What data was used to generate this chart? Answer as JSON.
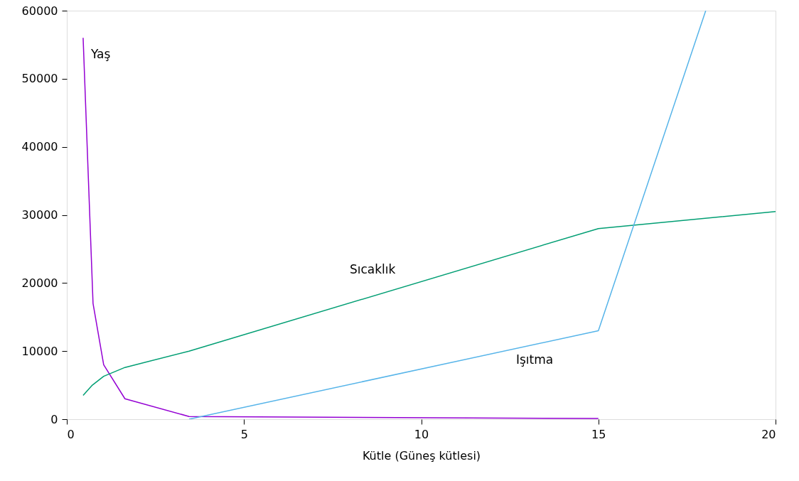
{
  "chart_data": {
    "type": "line",
    "xlabel": "Kütle (Güneş kütlesi)",
    "xlim": [
      0,
      20
    ],
    "xticks": [
      0,
      5,
      10,
      15,
      20
    ],
    "ylim": [
      0,
      60000
    ],
    "yticks": [
      0,
      10000,
      20000,
      30000,
      40000,
      50000,
      60000
    ],
    "marker": "none",
    "line_style": "solid",
    "series": [
      {
        "name": "Yaş",
        "color": "#9400d3",
        "x": [
          0.46,
          0.74,
          1.04,
          1.64,
          3.45,
          15
        ],
        "values": [
          56000,
          17000,
          8000,
          3000,
          400,
          100
        ]
      },
      {
        "name": "Sıcaklık",
        "color": "#009e73",
        "x": [
          0.46,
          0.72,
          1.04,
          1.64,
          3.45,
          15,
          20
        ],
        "values": [
          3500,
          5000,
          6300,
          7600,
          10000,
          28000,
          30500
        ]
      },
      {
        "name": "Işıtma",
        "color": "#56b4e9",
        "x": [
          3.45,
          15,
          18.03
        ],
        "values": [
          0,
          13000,
          60000
        ]
      }
    ]
  }
}
